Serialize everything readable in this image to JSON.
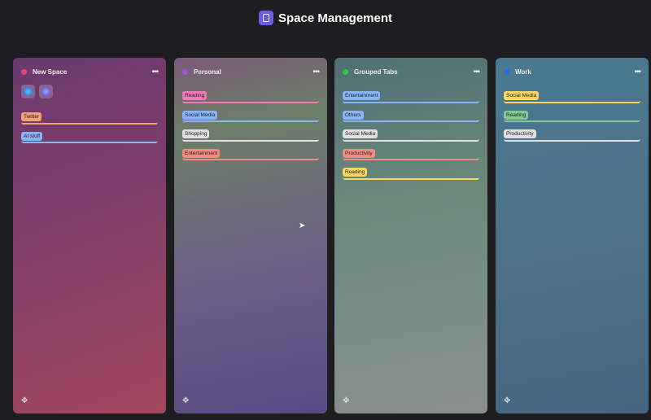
{
  "header": {
    "title": "Space Management",
    "icon": "space-app-icon"
  },
  "colors": {
    "orange": "#f5a07a",
    "blue": "#8ab4f8",
    "pink": "#f07ab8",
    "grey": "#e0e0e0",
    "red": "#f28b82",
    "yellow": "#fdd663",
    "green": "#81c995"
  },
  "spaces": [
    {
      "name": "New Space",
      "dot": "#e0457b",
      "apps": [
        "chrome-canary-icon",
        "arc-icon"
      ],
      "groups": [
        {
          "label": "Twitter",
          "color": "#f5a07a"
        },
        {
          "label": "AI stuff",
          "color": "#8ab4f8"
        }
      ]
    },
    {
      "name": "Personal",
      "dot": "#9b59d6",
      "groups": [
        {
          "label": "Reading",
          "color": "#f07ab8"
        },
        {
          "label": "Social Media",
          "color": "#8ab4f8"
        },
        {
          "label": "Shopping",
          "color": "#e0e0e0"
        },
        {
          "label": "Entertainment",
          "color": "#f28b82"
        }
      ]
    },
    {
      "name": "Grouped Tabs",
      "dot": "#2ecc40",
      "groups": [
        {
          "label": "Entertainment",
          "color": "#8ab4f8"
        },
        {
          "label": "Others",
          "color": "#8ab4f8"
        },
        {
          "label": "Social Media",
          "color": "#e0e0e0"
        },
        {
          "label": "Productivity",
          "color": "#f28b82"
        },
        {
          "label": "Reading",
          "color": "#fdd663"
        }
      ]
    },
    {
      "name": "Work",
      "dot": "#2b6de0",
      "groups": [
        {
          "label": "Social Media",
          "color": "#fdd663"
        },
        {
          "label": "Reading",
          "color": "#81c995"
        },
        {
          "label": "Productivity",
          "color": "#e0e0e0"
        }
      ]
    }
  ]
}
